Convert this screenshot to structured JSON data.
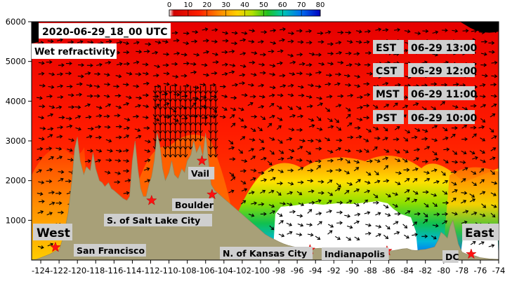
{
  "chart_data": {
    "type": "heatmap",
    "title": "2020-06-29_18_00 UTC",
    "subtitle": "Wet refractivity",
    "xlim": [
      -125,
      -74
    ],
    "ylim": [
      0,
      6000
    ],
    "x_ticks": [
      "-124",
      "-122",
      "-120",
      "-118",
      "-116",
      "-114",
      "-112",
      "-110",
      "-108",
      "-106",
      "-104",
      "-102",
      "-100",
      "-98",
      "-96",
      "-94",
      "-92",
      "-90",
      "-88",
      "-86",
      "-84",
      "-82",
      "-80",
      "-78",
      "-76",
      "-74"
    ],
    "y_ticks": [
      "1000",
      "2000",
      "3000",
      "4000",
      "5000",
      "6000"
    ],
    "colorbar": {
      "ticks": [
        "0",
        "10",
        "20",
        "30",
        "40",
        "50",
        "60",
        "70",
        "80"
      ],
      "min": 0,
      "max": 80
    },
    "times": [
      {
        "zone": "EST",
        "time": "06-29 13:00"
      },
      {
        "zone": "CST",
        "time": "06-29 12:00"
      },
      {
        "zone": "MST",
        "time": "06-29 11:00"
      },
      {
        "zone": "PST",
        "time": "06-29 10:00"
      }
    ],
    "regions": {
      "west": "West",
      "east": "East"
    },
    "cities": [
      {
        "name": "San Francisco",
        "lon": -122.4,
        "alt": 320
      },
      {
        "name": "S. of Salt Lake City",
        "lon": -111.9,
        "alt": 1500
      },
      {
        "name": "Boulder",
        "lon": -105.3,
        "alt": 1650
      },
      {
        "name": "Vail",
        "lon": -106.4,
        "alt": 2500
      },
      {
        "name": "N. of Kansas City",
        "lon": -94.6,
        "alt": 260
      },
      {
        "name": "Indianapolis",
        "lon": -86.2,
        "alt": 230
      },
      {
        "name": "DC",
        "lon": -77.0,
        "alt": 150
      }
    ],
    "terrain": [
      [
        -125,
        10
      ],
      [
        -124.5,
        20
      ],
      [
        -124,
        60
      ],
      [
        -123,
        150
      ],
      [
        -122.4,
        230
      ],
      [
        -122,
        250
      ],
      [
        -121.5,
        600
      ],
      [
        -121,
        1200
      ],
      [
        -120.6,
        2000
      ],
      [
        -120.3,
        2800
      ],
      [
        -120,
        3100
      ],
      [
        -119.7,
        2500
      ],
      [
        -119.3,
        2150
      ],
      [
        -119,
        2350
      ],
      [
        -118.6,
        2250
      ],
      [
        -118.3,
        2700
      ],
      [
        -118,
        2300
      ],
      [
        -117.6,
        2000
      ],
      [
        -117.3,
        1950
      ],
      [
        -117,
        1850
      ],
      [
        -116.6,
        1950
      ],
      [
        -116.3,
        1800
      ],
      [
        -116,
        1750
      ],
      [
        -115.5,
        1650
      ],
      [
        -115,
        1550
      ],
      [
        -114.6,
        1500
      ],
      [
        -114.3,
        1600
      ],
      [
        -114,
        2500
      ],
      [
        -113.7,
        3000
      ],
      [
        -113.4,
        2300
      ],
      [
        -113.1,
        1800
      ],
      [
        -112.8,
        1600
      ],
      [
        -112.5,
        1600
      ],
      [
        -112.2,
        1900
      ],
      [
        -111.9,
        2100
      ],
      [
        -111.6,
        2500
      ],
      [
        -111.3,
        3200
      ],
      [
        -111,
        2900
      ],
      [
        -110.7,
        2300
      ],
      [
        -110.4,
        2000
      ],
      [
        -110,
        2200
      ],
      [
        -109.7,
        2500
      ],
      [
        -109.4,
        2150
      ],
      [
        -109,
        2050
      ],
      [
        -108.6,
        2300
      ],
      [
        -108.3,
        2200
      ],
      [
        -108,
        2500
      ],
      [
        -107.6,
        2650
      ],
      [
        -107.3,
        3000
      ],
      [
        -107,
        2700
      ],
      [
        -106.6,
        2900
      ],
      [
        -106.3,
        2600
      ],
      [
        -106,
        3200
      ],
      [
        -105.7,
        2500
      ],
      [
        -105.4,
        1900
      ],
      [
        -105,
        1750
      ],
      [
        -104.5,
        1650
      ],
      [
        -104,
        1550
      ],
      [
        -103.5,
        1450
      ],
      [
        -103,
        1350
      ],
      [
        -102.5,
        1250
      ],
      [
        -102,
        1150
      ],
      [
        -101.5,
        1050
      ],
      [
        -101,
        950
      ],
      [
        -100.5,
        850
      ],
      [
        -100,
        750
      ],
      [
        -99.5,
        650
      ],
      [
        -99,
        580
      ],
      [
        -98.5,
        520
      ],
      [
        -98,
        460
      ],
      [
        -97.5,
        410
      ],
      [
        -97,
        370
      ],
      [
        -96.5,
        340
      ],
      [
        -96,
        320
      ],
      [
        -95.5,
        300
      ],
      [
        -95,
        290
      ],
      [
        -94.5,
        280
      ],
      [
        -94,
        290
      ],
      [
        -93.5,
        300
      ],
      [
        -93,
        290
      ],
      [
        -92.5,
        280
      ],
      [
        -92,
        270
      ],
      [
        -91.5,
        260
      ],
      [
        -91,
        250
      ],
      [
        -90.5,
        240
      ],
      [
        -90,
        250
      ],
      [
        -89.5,
        240
      ],
      [
        -89,
        230
      ],
      [
        -88.5,
        230
      ],
      [
        -88,
        240
      ],
      [
        -87.5,
        230
      ],
      [
        -87,
        240
      ],
      [
        -86.5,
        230
      ],
      [
        -86,
        230
      ],
      [
        -85.5,
        240
      ],
      [
        -85,
        260
      ],
      [
        -84.5,
        280
      ],
      [
        -84,
        290
      ],
      [
        -83.5,
        250
      ],
      [
        -83,
        240
      ],
      [
        -82.5,
        260
      ],
      [
        -82,
        270
      ],
      [
        -81.5,
        300
      ],
      [
        -81,
        330
      ],
      [
        -80.6,
        500
      ],
      [
        -80.3,
        700
      ],
      [
        -80,
        650
      ],
      [
        -79.6,
        550
      ],
      [
        -79.3,
        850
      ],
      [
        -79,
        1000
      ],
      [
        -78.7,
        700
      ],
      [
        -78.4,
        400
      ],
      [
        -78,
        200
      ],
      [
        -77.5,
        150
      ],
      [
        -77,
        130
      ],
      [
        -76.5,
        100
      ],
      [
        -76,
        60
      ],
      [
        -75,
        30
      ],
      [
        -74,
        20
      ]
    ]
  }
}
